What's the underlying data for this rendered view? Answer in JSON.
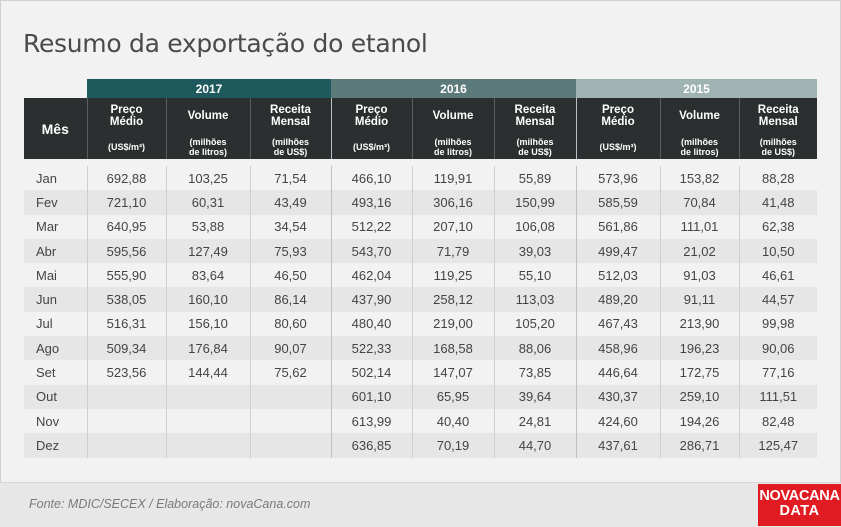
{
  "title": "Resumo da exportação do etanol",
  "header": {
    "mes_label": "Mês",
    "years": [
      "2017",
      "2016",
      "2015"
    ],
    "columns": [
      {
        "label_line1": "Preço",
        "label_line2": "Médio",
        "unit_line1": "(US$/m³)",
        "unit_line2": ""
      },
      {
        "label_line1": "Volume",
        "label_line2": "",
        "unit_line1": "(milhões",
        "unit_line2": "de litros)"
      },
      {
        "label_line1": "Receita",
        "label_line2": "Mensal",
        "unit_line1": "(milhões",
        "unit_line2": "de US$)"
      }
    ]
  },
  "rows": [
    {
      "month": "Jan",
      "y2017": [
        "692,88",
        "103,25",
        "71,54"
      ],
      "y2016": [
        "466,10",
        "119,91",
        "55,89"
      ],
      "y2015": [
        "573,96",
        "153,82",
        "88,28"
      ]
    },
    {
      "month": "Fev",
      "y2017": [
        "721,10",
        "60,31",
        "43,49"
      ],
      "y2016": [
        "493,16",
        "306,16",
        "150,99"
      ],
      "y2015": [
        "585,59",
        "70,84",
        "41,48"
      ]
    },
    {
      "month": "Mar",
      "y2017": [
        "640,95",
        "53,88",
        "34,54"
      ],
      "y2016": [
        "512,22",
        "207,10",
        "106,08"
      ],
      "y2015": [
        "561,86",
        "111,01",
        "62,38"
      ]
    },
    {
      "month": "Abr",
      "y2017": [
        "595,56",
        "127,49",
        "75,93"
      ],
      "y2016": [
        "543,70",
        "71,79",
        "39,03"
      ],
      "y2015": [
        "499,47",
        "21,02",
        "10,50"
      ]
    },
    {
      "month": "Mai",
      "y2017": [
        "555,90",
        "83,64",
        "46,50"
      ],
      "y2016": [
        "462,04",
        "119,25",
        "55,10"
      ],
      "y2015": [
        "512,03",
        "91,03",
        "46,61"
      ]
    },
    {
      "month": "Jun",
      "y2017": [
        "538,05",
        "160,10",
        "86,14"
      ],
      "y2016": [
        "437,90",
        "258,12",
        "113,03"
      ],
      "y2015": [
        "489,20",
        "91,11",
        "44,57"
      ]
    },
    {
      "month": "Jul",
      "y2017": [
        "516,31",
        "156,10",
        "80,60"
      ],
      "y2016": [
        "480,40",
        "219,00",
        "105,20"
      ],
      "y2015": [
        "467,43",
        "213,90",
        "99,98"
      ]
    },
    {
      "month": "Ago",
      "y2017": [
        "509,34",
        "176,84",
        "90,07"
      ],
      "y2016": [
        "522,33",
        "168,58",
        "88,06"
      ],
      "y2015": [
        "458,96",
        "196,23",
        "90,06"
      ]
    },
    {
      "month": "Set",
      "y2017": [
        "523,56",
        "144,44",
        "75,62"
      ],
      "y2016": [
        "502,14",
        "147,07",
        "73,85"
      ],
      "y2015": [
        "446,64",
        "172,75",
        "77,16"
      ]
    },
    {
      "month": "Out",
      "y2017": [
        "",
        "",
        ""
      ],
      "y2016": [
        "601,10",
        "65,95",
        "39,64"
      ],
      "y2015": [
        "430,37",
        "259,10",
        "111,51"
      ]
    },
    {
      "month": "Nov",
      "y2017": [
        "",
        "",
        ""
      ],
      "y2016": [
        "613,99",
        "40,40",
        "24,81"
      ],
      "y2015": [
        "424,60",
        "194,26",
        "82,48"
      ]
    },
    {
      "month": "Dez",
      "y2017": [
        "",
        "",
        ""
      ],
      "y2016": [
        "636,85",
        "70,19",
        "44,70"
      ],
      "y2015": [
        "437,61",
        "286,71",
        "125,47"
      ]
    }
  ],
  "footer": {
    "source": "Fonte: MDIC/SECEX / Elaboração: novaCana.com",
    "logo_line1": "NOVACANA",
    "logo_line2": "DATA"
  },
  "colors": {
    "year_2017": "#1e5a5d",
    "year_2016": "#5c7a7a",
    "year_2015": "#9fb3b3",
    "header_dark": "#2c2f30",
    "logo_red": "#e11b22"
  }
}
